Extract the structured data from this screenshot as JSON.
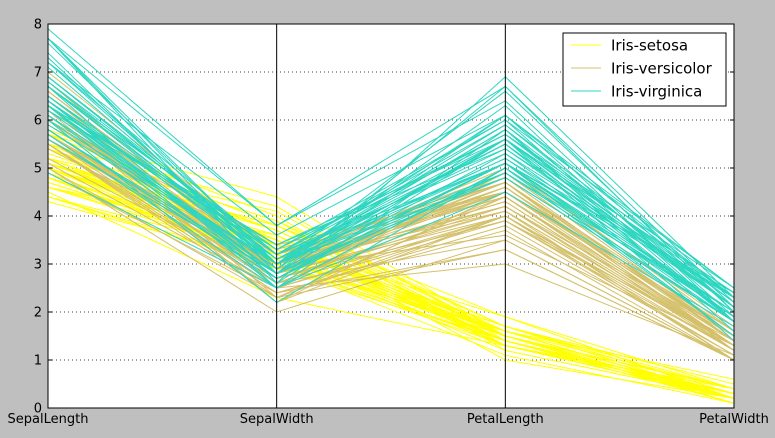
{
  "chart_data": {
    "type": "parallel-coordinates",
    "title": "",
    "axes": [
      "SepalLength",
      "SepalWidth",
      "PetalLength",
      "PetalWidth"
    ],
    "ylim": [
      0,
      8
    ],
    "yticks": [
      "0",
      "1",
      "2",
      "3",
      "4",
      "5",
      "6",
      "7",
      "8"
    ],
    "grid": "horizontal-dotted",
    "legend": "top-right",
    "series": [
      {
        "name": "Iris-setosa",
        "color": "#ffff00",
        "values": [
          [
            5.1,
            3.5,
            1.4,
            0.2
          ],
          [
            4.9,
            3.0,
            1.4,
            0.2
          ],
          [
            4.7,
            3.2,
            1.3,
            0.2
          ],
          [
            4.6,
            3.1,
            1.5,
            0.2
          ],
          [
            5.0,
            3.6,
            1.4,
            0.2
          ],
          [
            5.4,
            3.9,
            1.7,
            0.4
          ],
          [
            4.6,
            3.4,
            1.4,
            0.3
          ],
          [
            5.0,
            3.4,
            1.5,
            0.2
          ],
          [
            4.4,
            2.9,
            1.4,
            0.2
          ],
          [
            4.9,
            3.1,
            1.5,
            0.1
          ],
          [
            5.4,
            3.7,
            1.5,
            0.2
          ],
          [
            4.8,
            3.4,
            1.6,
            0.2
          ],
          [
            4.8,
            3.0,
            1.4,
            0.1
          ],
          [
            4.3,
            3.0,
            1.1,
            0.1
          ],
          [
            5.8,
            4.0,
            1.2,
            0.2
          ],
          [
            5.7,
            4.4,
            1.5,
            0.4
          ],
          [
            5.4,
            3.9,
            1.3,
            0.4
          ],
          [
            5.1,
            3.5,
            1.4,
            0.3
          ],
          [
            5.7,
            3.8,
            1.7,
            0.3
          ],
          [
            5.1,
            3.8,
            1.5,
            0.3
          ],
          [
            5.4,
            3.4,
            1.7,
            0.2
          ],
          [
            5.1,
            3.7,
            1.5,
            0.4
          ],
          [
            4.6,
            3.6,
            1.0,
            0.2
          ],
          [
            5.1,
            3.3,
            1.7,
            0.5
          ],
          [
            4.8,
            3.4,
            1.9,
            0.2
          ],
          [
            5.0,
            3.0,
            1.6,
            0.2
          ],
          [
            5.0,
            3.4,
            1.6,
            0.4
          ],
          [
            5.2,
            3.5,
            1.5,
            0.2
          ],
          [
            5.2,
            3.4,
            1.4,
            0.2
          ],
          [
            4.7,
            3.2,
            1.6,
            0.2
          ],
          [
            4.8,
            3.1,
            1.6,
            0.2
          ],
          [
            5.4,
            3.4,
            1.5,
            0.4
          ],
          [
            5.2,
            4.1,
            1.5,
            0.1
          ],
          [
            5.5,
            4.2,
            1.4,
            0.2
          ],
          [
            4.9,
            3.1,
            1.5,
            0.1
          ],
          [
            5.0,
            3.2,
            1.2,
            0.2
          ],
          [
            5.5,
            3.5,
            1.3,
            0.2
          ],
          [
            4.9,
            3.1,
            1.5,
            0.1
          ],
          [
            4.4,
            3.0,
            1.3,
            0.2
          ],
          [
            5.1,
            3.4,
            1.5,
            0.2
          ],
          [
            5.0,
            3.5,
            1.3,
            0.3
          ],
          [
            4.5,
            2.3,
            1.3,
            0.3
          ],
          [
            4.4,
            3.2,
            1.3,
            0.2
          ],
          [
            5.0,
            3.5,
            1.6,
            0.6
          ],
          [
            5.1,
            3.8,
            1.9,
            0.4
          ],
          [
            4.8,
            3.0,
            1.4,
            0.3
          ],
          [
            5.1,
            3.8,
            1.6,
            0.2
          ],
          [
            4.6,
            3.2,
            1.4,
            0.2
          ],
          [
            5.3,
            3.7,
            1.5,
            0.2
          ],
          [
            5.0,
            3.3,
            1.4,
            0.2
          ]
        ]
      },
      {
        "name": "Iris-versicolor",
        "color": "#d4c06a",
        "values": [
          [
            7.0,
            3.2,
            4.7,
            1.4
          ],
          [
            6.4,
            3.2,
            4.5,
            1.5
          ],
          [
            6.9,
            3.1,
            4.9,
            1.5
          ],
          [
            5.5,
            2.3,
            4.0,
            1.3
          ],
          [
            6.5,
            2.8,
            4.6,
            1.5
          ],
          [
            5.7,
            2.8,
            4.5,
            1.3
          ],
          [
            6.3,
            3.3,
            4.7,
            1.6
          ],
          [
            4.9,
            2.4,
            3.3,
            1.0
          ],
          [
            6.6,
            2.9,
            4.6,
            1.3
          ],
          [
            5.2,
            2.7,
            3.9,
            1.4
          ],
          [
            5.0,
            2.0,
            3.5,
            1.0
          ],
          [
            5.9,
            3.0,
            4.2,
            1.5
          ],
          [
            6.0,
            2.2,
            4.0,
            1.0
          ],
          [
            6.1,
            2.9,
            4.7,
            1.4
          ],
          [
            5.6,
            2.9,
            3.6,
            1.3
          ],
          [
            6.7,
            3.1,
            4.4,
            1.4
          ],
          [
            5.6,
            3.0,
            4.5,
            1.5
          ],
          [
            5.8,
            2.7,
            4.1,
            1.0
          ],
          [
            6.2,
            2.2,
            4.5,
            1.5
          ],
          [
            5.6,
            2.5,
            3.9,
            1.1
          ],
          [
            5.9,
            3.2,
            4.8,
            1.8
          ],
          [
            6.1,
            2.8,
            4.0,
            1.3
          ],
          [
            6.3,
            2.5,
            4.9,
            1.5
          ],
          [
            6.1,
            2.8,
            4.7,
            1.2
          ],
          [
            6.4,
            2.9,
            4.3,
            1.3
          ],
          [
            6.6,
            3.0,
            4.4,
            1.4
          ],
          [
            6.8,
            2.8,
            4.8,
            1.4
          ],
          [
            6.7,
            3.0,
            5.0,
            1.7
          ],
          [
            6.0,
            2.9,
            4.5,
            1.5
          ],
          [
            5.7,
            2.6,
            3.5,
            1.0
          ],
          [
            5.5,
            2.4,
            3.8,
            1.1
          ],
          [
            5.5,
            2.4,
            3.7,
            1.0
          ],
          [
            5.8,
            2.7,
            3.9,
            1.2
          ],
          [
            6.0,
            2.7,
            5.1,
            1.6
          ],
          [
            5.4,
            3.0,
            4.5,
            1.5
          ],
          [
            6.0,
            3.4,
            4.5,
            1.6
          ],
          [
            6.7,
            3.1,
            4.7,
            1.5
          ],
          [
            6.3,
            2.3,
            4.4,
            1.3
          ],
          [
            5.6,
            3.0,
            4.1,
            1.3
          ],
          [
            5.5,
            2.5,
            4.0,
            1.3
          ],
          [
            5.5,
            2.6,
            4.4,
            1.2
          ],
          [
            6.1,
            3.0,
            4.6,
            1.4
          ],
          [
            5.8,
            2.6,
            4.0,
            1.2
          ],
          [
            5.0,
            2.3,
            3.3,
            1.0
          ],
          [
            5.6,
            2.7,
            4.2,
            1.3
          ],
          [
            5.7,
            3.0,
            4.2,
            1.2
          ],
          [
            5.7,
            2.9,
            4.2,
            1.3
          ],
          [
            6.2,
            2.9,
            4.3,
            1.3
          ],
          [
            5.1,
            2.5,
            3.0,
            1.1
          ],
          [
            5.7,
            2.8,
            4.1,
            1.3
          ]
        ]
      },
      {
        "name": "Iris-virginica",
        "color": "#2ed6c0",
        "values": [
          [
            6.3,
            3.3,
            6.0,
            2.5
          ],
          [
            5.8,
            2.7,
            5.1,
            1.9
          ],
          [
            7.1,
            3.0,
            5.9,
            2.1
          ],
          [
            6.3,
            2.9,
            5.6,
            1.8
          ],
          [
            6.5,
            3.0,
            5.8,
            2.2
          ],
          [
            7.6,
            3.0,
            6.6,
            2.1
          ],
          [
            4.9,
            2.5,
            4.5,
            1.7
          ],
          [
            7.3,
            2.9,
            6.3,
            1.8
          ],
          [
            6.7,
            2.5,
            5.8,
            1.8
          ],
          [
            7.2,
            3.6,
            6.1,
            2.5
          ],
          [
            6.5,
            3.2,
            5.1,
            2.0
          ],
          [
            6.4,
            2.7,
            5.3,
            1.9
          ],
          [
            6.8,
            3.0,
            5.5,
            2.1
          ],
          [
            5.7,
            2.5,
            5.0,
            2.0
          ],
          [
            5.8,
            2.8,
            5.1,
            2.4
          ],
          [
            6.4,
            3.2,
            5.3,
            2.3
          ],
          [
            6.5,
            3.0,
            5.5,
            1.8
          ],
          [
            7.7,
            3.8,
            6.7,
            2.2
          ],
          [
            7.7,
            2.6,
            6.9,
            2.3
          ],
          [
            6.0,
            2.2,
            5.0,
            1.5
          ],
          [
            6.9,
            3.2,
            5.7,
            2.3
          ],
          [
            5.6,
            2.8,
            4.9,
            2.0
          ],
          [
            7.7,
            2.8,
            6.7,
            2.0
          ],
          [
            6.3,
            2.7,
            4.9,
            1.8
          ],
          [
            6.7,
            3.3,
            5.7,
            2.1
          ],
          [
            7.2,
            3.2,
            6.0,
            1.8
          ],
          [
            6.2,
            2.8,
            4.8,
            1.8
          ],
          [
            6.1,
            3.0,
            4.9,
            1.8
          ],
          [
            6.4,
            2.8,
            5.6,
            2.1
          ],
          [
            7.2,
            3.0,
            5.8,
            1.6
          ],
          [
            7.4,
            2.8,
            6.1,
            1.9
          ],
          [
            7.9,
            3.8,
            6.4,
            2.0
          ],
          [
            6.4,
            2.8,
            5.6,
            2.2
          ],
          [
            6.3,
            2.8,
            5.1,
            1.5
          ],
          [
            6.1,
            2.6,
            5.6,
            1.4
          ],
          [
            7.7,
            3.0,
            6.1,
            2.3
          ],
          [
            6.3,
            3.4,
            5.6,
            2.4
          ],
          [
            6.4,
            3.1,
            5.5,
            1.8
          ],
          [
            6.0,
            3.0,
            4.8,
            1.8
          ],
          [
            6.9,
            3.1,
            5.4,
            2.1
          ],
          [
            6.7,
            3.1,
            5.6,
            2.4
          ],
          [
            6.9,
            3.1,
            5.1,
            2.3
          ],
          [
            5.8,
            2.7,
            5.1,
            1.9
          ],
          [
            6.8,
            3.2,
            5.9,
            2.3
          ],
          [
            6.7,
            3.3,
            5.7,
            2.5
          ],
          [
            6.7,
            3.0,
            5.2,
            2.3
          ],
          [
            6.3,
            2.5,
            5.0,
            1.9
          ],
          [
            6.5,
            3.0,
            5.2,
            2.0
          ],
          [
            6.2,
            3.4,
            5.4,
            2.3
          ],
          [
            5.9,
            3.0,
            5.1,
            1.8
          ]
        ]
      }
    ]
  }
}
